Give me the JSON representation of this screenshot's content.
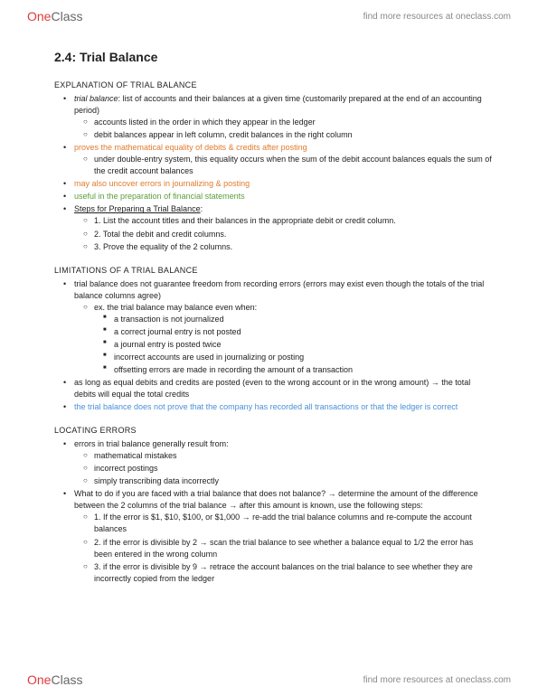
{
  "brand": {
    "one": "One",
    "class": "Class"
  },
  "tagline": "find more resources at oneclass.com",
  "title": "2.4: Trial Balance",
  "sections": [
    {
      "heading": "EXPLANATION OF TRIAL BALANCE",
      "items": [
        {
          "text_parts": [
            {
              "text": "trial balance",
              "italic": true
            },
            {
              "text": ": list of accounts and their balances at a given time (customarily prepared at the end of an accounting period)"
            }
          ],
          "children": [
            {
              "text": "accounts listed in the order in which they appear in the ledger"
            },
            {
              "text": "debit balances appear in left column, credit balances in the right column"
            }
          ]
        },
        {
          "text": "proves the mathematical equality of debits & credits after posting",
          "color": "orange",
          "children": [
            {
              "text": "under double-entry system, this equality occurs when the sum of the debit account balances equals the sum of the credit account balances"
            }
          ]
        },
        {
          "text": "may also uncover errors in journalizing & posting",
          "color": "orange"
        },
        {
          "text": "useful in the preparation of financial statements",
          "color": "green"
        },
        {
          "text": "Steps for Preparing a Trial Balance",
          "underline": true,
          "suffix": ":",
          "children": [
            {
              "text": "1. List the account titles and their balances in the appropriate debit or credit column."
            },
            {
              "text": "2. Total the debit and credit columns."
            },
            {
              "text": "3. Prove the equality of the 2 columns."
            }
          ]
        }
      ]
    },
    {
      "heading": "LIMITATIONS OF A TRIAL BALANCE",
      "items": [
        {
          "text": "trial balance does not guarantee freedom from recording errors (errors may exist even though the totals of the trial balance columns agree)",
          "children": [
            {
              "text": "ex. the trial balance may balance even when:",
              "children3": [
                {
                  "text": "a transaction is not journalized"
                },
                {
                  "text": "a correct journal entry is not posted"
                },
                {
                  "text": "a journal entry is posted twice"
                },
                {
                  "text": "incorrect accounts are used in journalizing or posting"
                },
                {
                  "text": "offsetting errors are made in recording the amount of a transaction"
                }
              ]
            }
          ]
        },
        {
          "text": "as long as equal debits and credits are posted (even to the wrong account or in the wrong amount) → the total debits will equal the total credits"
        },
        {
          "text": "the trial balance does not prove that the company has recorded all transactions or that the ledger is correct",
          "color": "blue"
        }
      ]
    },
    {
      "heading": "LOCATING ERRORS",
      "items": [
        {
          "text": "errors in trial balance generally result from:",
          "children": [
            {
              "text": "mathematical mistakes"
            },
            {
              "text": "incorrect postings"
            },
            {
              "text": "simply transcribing data incorrectly"
            }
          ]
        },
        {
          "text": "What to do if you are faced with a trial balance that does not balance? → determine the amount of the difference between the 2 columns of the trial balance → after this amount is known, use the following steps:",
          "children": [
            {
              "text": "1. If the error is $1, $10, $100, or $1,000 → re-add the trial balance columns and re-compute the account balances"
            },
            {
              "text": "2. if the error is divisible by 2 → scan the trial balance to see whether a balance equal to 1/2 the error has been entered in the wrong column"
            },
            {
              "text": "3. if the error is divisible by 9 → retrace the account balances on the trial balance to see whether they are incorrectly copied from the ledger"
            }
          ]
        }
      ]
    }
  ]
}
